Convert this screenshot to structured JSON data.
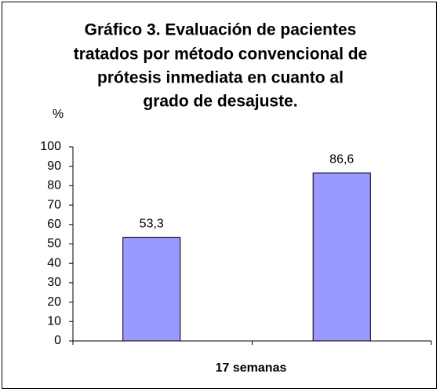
{
  "chart_data": {
    "type": "bar",
    "title": [
      "Gráfico 3. Evaluación de pacientes",
      "tratados por método convencional de",
      "prótesis inmediata en cuanto al",
      "grado de desajuste."
    ],
    "y_label": "%",
    "x_label": "17 semanas",
    "categories": [
      null,
      null
    ],
    "values": [
      53.3,
      86.6
    ],
    "value_labels": [
      "53,3",
      "86,6"
    ],
    "color": "#9999ff",
    "ylim": [
      0,
      100
    ],
    "yticks": [
      0,
      10,
      20,
      30,
      40,
      50,
      60,
      70,
      80,
      90,
      100
    ],
    "grid": false
  }
}
